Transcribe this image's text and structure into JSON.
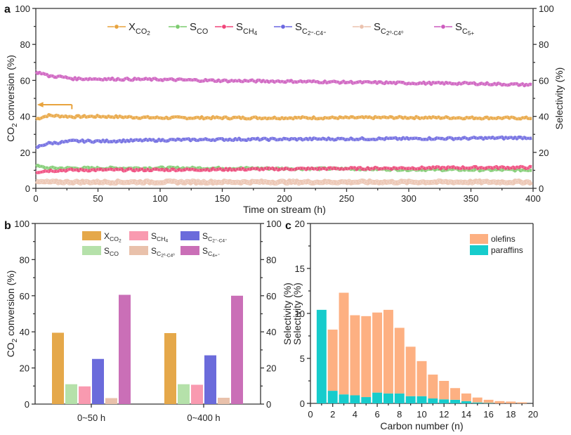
{
  "chart_data": [
    {
      "panel": "a",
      "type": "line",
      "title": "",
      "xlabel": "Time on stream (h)",
      "ylabel": "CO2 conversion (%)",
      "ylabel_right": "Selectivity (%)",
      "xlim": [
        0,
        400
      ],
      "ylim": [
        0,
        100
      ],
      "ylim_right": [
        0,
        100
      ],
      "x_ticks": [
        0,
        50,
        100,
        150,
        200,
        250,
        300,
        350,
        400
      ],
      "y_ticks": [
        0,
        20,
        40,
        60,
        80,
        100
      ],
      "y_ticks_right": [
        0,
        20,
        40,
        60,
        80,
        100
      ],
      "grid": false,
      "legend_position": "top",
      "annotation": "left-pointing arrow indicates X_CO2 is read on the left axis",
      "series": [
        {
          "name": "X_CO2",
          "legend_main": "X",
          "legend_sub": "CO",
          "legend_sub2": "2",
          "color": "#E8A33D",
          "x": [
            0,
            5,
            10,
            20,
            30,
            50,
            100,
            150,
            200,
            250,
            300,
            350,
            400
          ],
          "y": [
            38.5,
            39.5,
            40.5,
            40.2,
            39.8,
            40,
            39.2,
            39.2,
            39.2,
            39.2,
            39.4,
            39.2,
            39
          ]
        },
        {
          "name": "S_CO",
          "legend_main": "S",
          "legend_sub": "CO",
          "legend_sub2": "",
          "color": "#7CCB6E",
          "x": [
            0,
            5,
            10,
            20,
            30,
            50,
            100,
            150,
            200,
            250,
            300,
            350,
            400
          ],
          "y": [
            12.5,
            11.8,
            11.3,
            11.2,
            11.2,
            11.2,
            11.3,
            11.2,
            11,
            10.8,
            10.5,
            10.3,
            10.2
          ]
        },
        {
          "name": "S_CH4",
          "legend_main": "S",
          "legend_sub": "CH",
          "legend_sub2": "4",
          "color": "#F0457A",
          "x": [
            0,
            5,
            10,
            20,
            30,
            50,
            100,
            150,
            200,
            250,
            300,
            350,
            400
          ],
          "y": [
            9,
            9.5,
            9.8,
            10,
            10.2,
            10.2,
            10.3,
            10.5,
            10.8,
            11,
            11.3,
            11.5,
            11.6
          ]
        },
        {
          "name": "S_C2=-C4=",
          "legend_main": "S",
          "legend_sub": "C",
          "legend_sub2": "2=-C4=",
          "color": "#6A66E0",
          "x": [
            0,
            5,
            10,
            20,
            30,
            50,
            100,
            150,
            200,
            250,
            300,
            350,
            400
          ],
          "y": [
            22.5,
            24,
            25,
            25.5,
            26.3,
            26.2,
            26.8,
            27.2,
            27.3,
            27.5,
            27.6,
            27.8,
            28.2
          ]
        },
        {
          "name": "S_C2o-C4o",
          "legend_main": "S",
          "legend_sub": "C",
          "legend_sub2": "2o-C4o",
          "color": "#EBC2AE",
          "x": [
            0,
            50,
            100,
            150,
            200,
            250,
            300,
            350,
            400
          ],
          "y": [
            3.5,
            3.5,
            3.5,
            3.5,
            3.5,
            3.5,
            3.5,
            3.5,
            3.5
          ]
        },
        {
          "name": "S_C5+",
          "legend_main": "S",
          "legend_sub": "C",
          "legend_sub2": "5+",
          "color": "#CC5BBE",
          "x": [
            0,
            5,
            10,
            20,
            30,
            50,
            100,
            150,
            200,
            250,
            300,
            350,
            400
          ],
          "y": [
            64.5,
            64,
            62.5,
            62,
            61,
            60.8,
            60.5,
            59.8,
            59.5,
            59,
            58.5,
            58.3,
            57.5
          ]
        }
      ]
    },
    {
      "panel": "b",
      "type": "bar",
      "title": "",
      "xlabel": "",
      "ylabel": "CO2 conversion (%)",
      "ylabel_right": "Selectivity (%)",
      "ylim": [
        0,
        100
      ],
      "ylim_right": [
        0,
        100
      ],
      "y_ticks": [
        0,
        20,
        40,
        60,
        80,
        100
      ],
      "grid": false,
      "legend_position": "top",
      "categories": [
        "0~50 h",
        "0~400 h"
      ],
      "series": [
        {
          "name": "X_CO2",
          "color": "#E5A84A",
          "values": [
            39.5,
            39.3
          ]
        },
        {
          "name": "S_CO",
          "color": "#B5E1AA",
          "values": [
            11,
            11
          ]
        },
        {
          "name": "S_CH4",
          "color": "#F99AB0",
          "values": [
            9.8,
            10.7
          ]
        },
        {
          "name": "S_C2=-C4=",
          "color": "#6B6BDB",
          "values": [
            25,
            27
          ]
        },
        {
          "name": "S_C2o-C4o",
          "color": "#E9C1AB",
          "values": [
            3.3,
            3.5
          ]
        },
        {
          "name": "S_C4+=",
          "color": "#CA6FB7",
          "values": [
            60.5,
            60
          ]
        }
      ]
    },
    {
      "panel": "c",
      "type": "bar",
      "stacked": true,
      "title": "",
      "xlabel": "Carbon number (n)",
      "ylabel": "Selectivity (%)",
      "xlim": [
        0,
        20
      ],
      "ylim": [
        0,
        20
      ],
      "x_ticks": [
        0,
        2,
        4,
        6,
        8,
        10,
        12,
        14,
        16,
        18,
        20
      ],
      "y_ticks": [
        0,
        5,
        10,
        15,
        20
      ],
      "grid": false,
      "legend_position": "top-right",
      "x": [
        1,
        2,
        3,
        4,
        5,
        6,
        7,
        8,
        9,
        10,
        11,
        12,
        13,
        14,
        15,
        16,
        17,
        18,
        19
      ],
      "series": [
        {
          "name": "paraffins",
          "color": "#16CCCC",
          "values": [
            10.4,
            1.4,
            1.0,
            0.9,
            0.7,
            1.2,
            1.1,
            1.1,
            0.8,
            0.8,
            0.55,
            0.45,
            0.4,
            0.25,
            0.1,
            0.05,
            0,
            0,
            0
          ]
        },
        {
          "name": "olefins",
          "color": "#FDB082",
          "values": [
            0,
            6.8,
            11.3,
            8.9,
            9.0,
            8.9,
            9.3,
            7.3,
            5.5,
            3.9,
            2.65,
            2.05,
            1.3,
            0.85,
            0.55,
            0.35,
            0.25,
            0.2,
            0.12
          ]
        }
      ]
    }
  ],
  "panel_labels": {
    "a": "a",
    "b": "b",
    "c": "c"
  },
  "panel_b_legend": [
    {
      "main": "X",
      "sub": "CO",
      "sub2": "2"
    },
    {
      "main": "S",
      "sub": "CH",
      "sub2": "4"
    },
    {
      "main": "S",
      "sub": "C",
      "sub2": "2=-C4="
    },
    {
      "main": "S",
      "sub": "CO",
      "sub2": ""
    },
    {
      "main": "S",
      "sub": "C",
      "sub2": "2o-C4o"
    },
    {
      "main": "S",
      "sub": "C",
      "sub2": "4+="
    }
  ]
}
